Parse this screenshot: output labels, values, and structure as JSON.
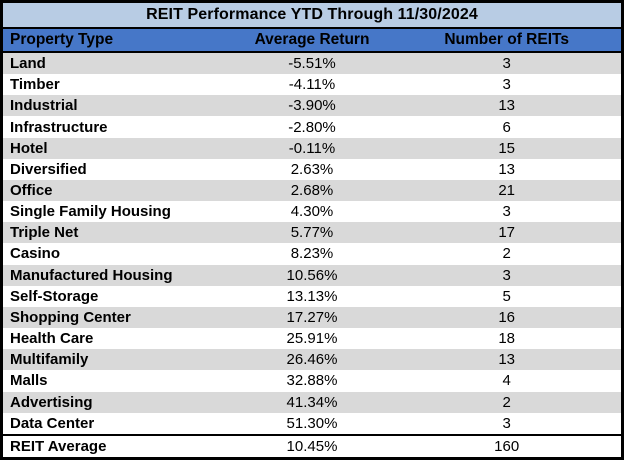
{
  "title": "REIT Performance YTD Through 11/30/2024",
  "table": {
    "columns": [
      "Property Type",
      "Average Return",
      "Number of REITs"
    ],
    "rows": [
      [
        "Land",
        "-5.51%",
        "3"
      ],
      [
        "Timber",
        "-4.11%",
        "3"
      ],
      [
        "Industrial",
        "-3.90%",
        "13"
      ],
      [
        "Infrastructure",
        "-2.80%",
        "6"
      ],
      [
        "Hotel",
        "-0.11%",
        "15"
      ],
      [
        "Diversified",
        "2.63%",
        "13"
      ],
      [
        "Office",
        "2.68%",
        "21"
      ],
      [
        "Single Family Housing",
        "4.30%",
        "3"
      ],
      [
        "Triple Net",
        "5.77%",
        "17"
      ],
      [
        "Casino",
        "8.23%",
        "2"
      ],
      [
        "Manufactured Housing",
        "10.56%",
        "3"
      ],
      [
        "Self-Storage",
        "13.13%",
        "5"
      ],
      [
        "Shopping Center",
        "17.27%",
        "16"
      ],
      [
        "Health Care",
        "25.91%",
        "18"
      ],
      [
        "Multifamily",
        "26.46%",
        "13"
      ],
      [
        "Malls",
        "32.88%",
        "4"
      ],
      [
        "Advertising",
        "41.34%",
        "2"
      ],
      [
        "Data Center",
        "51.30%",
        "3"
      ]
    ],
    "footer": [
      "REIT Average",
      "10.45%",
      "160"
    ]
  },
  "colors": {
    "title_bg": "#B8CCE4",
    "header_bg": "#4677C8",
    "row_bg": "#FFFFFF",
    "row_alt_bg": "#D9D9D9",
    "border": "#000000",
    "text": "#000000"
  },
  "chart_data": {
    "type": "table",
    "title": "REIT Performance YTD Through 11/30/2024",
    "columns": [
      "Property Type",
      "Average Return (%)",
      "Number of REITs"
    ],
    "rows": [
      [
        "Land",
        -5.51,
        3
      ],
      [
        "Timber",
        -4.11,
        3
      ],
      [
        "Industrial",
        -3.9,
        13
      ],
      [
        "Infrastructure",
        -2.8,
        6
      ],
      [
        "Hotel",
        -0.11,
        15
      ],
      [
        "Diversified",
        2.63,
        13
      ],
      [
        "Office",
        2.68,
        21
      ],
      [
        "Single Family Housing",
        4.3,
        3
      ],
      [
        "Triple Net",
        5.77,
        17
      ],
      [
        "Casino",
        8.23,
        2
      ],
      [
        "Manufactured Housing",
        10.56,
        3
      ],
      [
        "Self-Storage",
        13.13,
        5
      ],
      [
        "Shopping Center",
        17.27,
        16
      ],
      [
        "Health Care",
        25.91,
        18
      ],
      [
        "Multifamily",
        26.46,
        13
      ],
      [
        "Malls",
        32.88,
        4
      ],
      [
        "Advertising",
        41.34,
        2
      ],
      [
        "Data Center",
        51.3,
        3
      ]
    ],
    "footer": [
      "REIT Average",
      10.45,
      160
    ],
    "layout_hints": {
      "title_bar": true,
      "alternating_row_shading": true,
      "first_column_bold": true,
      "footer_separated_by_border": true
    }
  }
}
